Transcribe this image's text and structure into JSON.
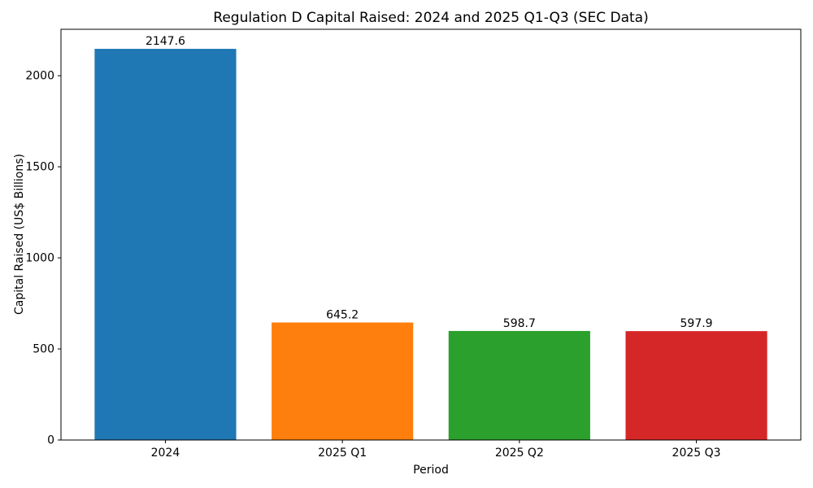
{
  "figure": {
    "background": "#ffffff",
    "spine_color": "#000000",
    "text_color": "#000000"
  },
  "chart_data": {
    "type": "bar",
    "title": "Regulation D Capital Raised: 2024 and 2025 Q1-Q3 (SEC Data)",
    "xlabel": "Period",
    "ylabel": "Capital Raised (US$ Billions)",
    "categories": [
      "2024",
      "2025 Q1",
      "2025 Q2",
      "2025 Q3"
    ],
    "values": [
      2147.6,
      645.2,
      598.7,
      597.9
    ],
    "value_labels": [
      "2147.6",
      "645.2",
      "598.7",
      "597.9"
    ],
    "bar_colors": [
      "#1f77b4",
      "#ff7f0e",
      "#2ca02c",
      "#d62728"
    ],
    "yticks": [
      0,
      500,
      1000,
      1500,
      2000
    ],
    "ytick_labels": [
      "0",
      "500",
      "1000",
      "1500",
      "2000"
    ],
    "ylim": [
      0,
      2255
    ],
    "grid": false,
    "legend": null
  }
}
